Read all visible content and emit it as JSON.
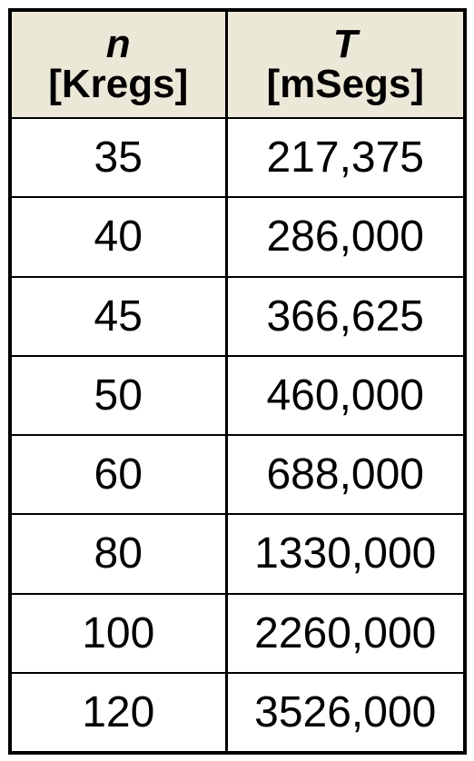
{
  "header": {
    "col1": {
      "var": "n",
      "unit": "[Kregs]"
    },
    "col2": {
      "var": "T",
      "unit": "[mSegs]"
    }
  },
  "rows": [
    {
      "n": "35",
      "t": "217,375"
    },
    {
      "n": "40",
      "t": "286,000"
    },
    {
      "n": "45",
      "t": "366,625"
    },
    {
      "n": "50",
      "t": "460,000"
    },
    {
      "n": "60",
      "t": "688,000"
    },
    {
      "n": "80",
      "t": "1330,000"
    },
    {
      "n": "100",
      "t": "2260,000"
    },
    {
      "n": "120",
      "t": "3526,000"
    }
  ],
  "colors": {
    "header_bg": "#ece8d8",
    "border": "#000000"
  }
}
